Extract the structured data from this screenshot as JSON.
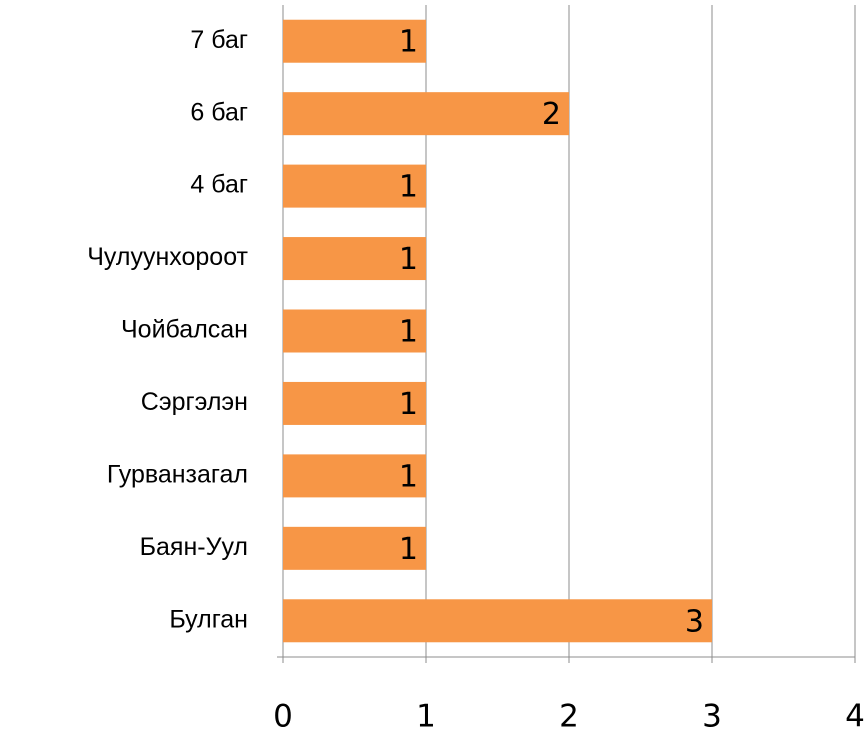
{
  "chart_data": {
    "type": "hbar",
    "categories": [
      "7 баг",
      "6 баг",
      "4 баг",
      "Чулуунхороот",
      "Чойбалсан",
      "Сэргэлэн",
      "Гурванзагал",
      "Баян-Уул",
      "Булган"
    ],
    "values": [
      1,
      2,
      1,
      1,
      1,
      1,
      1,
      1,
      3
    ],
    "color": "#f79646",
    "xlim": [
      0,
      4
    ],
    "xticks": [
      0,
      1,
      2,
      3,
      4
    ],
    "grid": true
  }
}
